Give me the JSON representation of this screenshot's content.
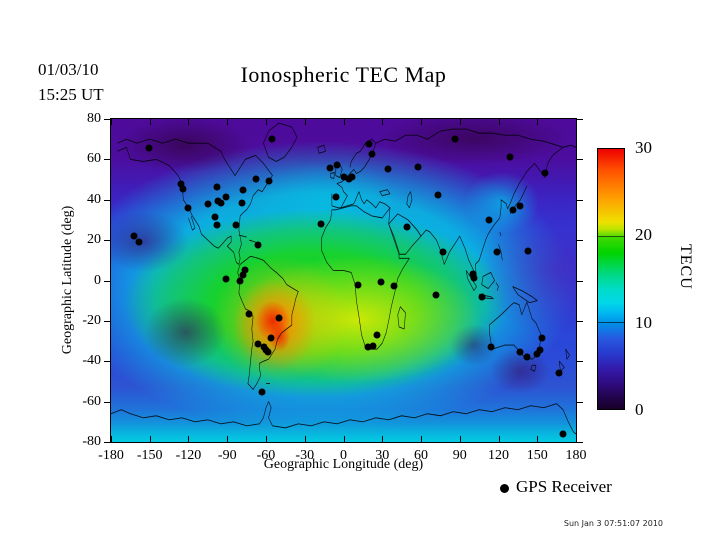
{
  "header": {
    "date": "01/03/10",
    "time": "15:25 UT",
    "title": "Ionospheric TEC Map"
  },
  "chart_data": {
    "type": "heatmap",
    "title": "Ionospheric TEC Map",
    "xlabel": "Geographic Longitude (deg)",
    "ylabel": "Geographic Latitude (deg)",
    "xlim": [
      -180,
      180
    ],
    "ylim": [
      -80,
      80
    ],
    "x_ticks": [
      -180,
      -150,
      -120,
      -90,
      -60,
      -30,
      0,
      30,
      60,
      90,
      120,
      150,
      180
    ],
    "y_ticks": [
      80,
      60,
      40,
      20,
      0,
      -20,
      -40,
      -60,
      -80
    ],
    "grid": false,
    "colorbar": {
      "unit_label": "TECU",
      "min": 0,
      "max": 30,
      "ticks": [
        30,
        20,
        10,
        0
      ],
      "colors_top_to_bottom": [
        "#ee0000",
        "#ff9800",
        "#f0e000",
        "#30d000",
        "#00d8c0",
        "#00e0e8",
        "#0090e8",
        "#2838cc",
        "#3c0d86",
        "#180028"
      ]
    },
    "tec_field_summary": {
      "peak": {
        "lon": -53,
        "lat": -22,
        "value_tecu": 30,
        "note": "red hotspot over southern Brazil"
      },
      "high_band": {
        "value_tecu": "18-26",
        "note": "green-yellow daytime band over South America, Atlantic and Africa, lat 25 to -50"
      },
      "mid": {
        "value_tecu": "8-14",
        "note": "blue over North America, Europe, Asia, Australia and oceans"
      },
      "low": {
        "value_tecu": "0-5",
        "note": "dark purple at high northern latitudes, Siberia, NE Pacific and patches near Australia"
      },
      "antarctic_edge": {
        "value_tecu": "12-15",
        "note": "cyan band along bottom edge near lat -75"
      }
    },
    "legend": {
      "marker": "black-dot",
      "label": "GPS Receiver"
    },
    "gps_receivers": [
      [
        -150.7,
        65.7
      ],
      [
        -126,
        48
      ],
      [
        -124.5,
        45.5
      ],
      [
        -120.6,
        35.7
      ],
      [
        -105,
        38
      ],
      [
        -98,
        46.5
      ],
      [
        -97.4,
        39.6
      ],
      [
        -95,
        38.6
      ],
      [
        -91,
        41.6
      ],
      [
        -78,
        45
      ],
      [
        -68,
        50.4
      ],
      [
        -57.5,
        49.5
      ],
      [
        -78.5,
        38.6
      ],
      [
        -99.8,
        31.3
      ],
      [
        -97.6,
        27.3
      ],
      [
        -83.6,
        27.3
      ],
      [
        -65.9,
        17.5
      ],
      [
        -76,
        5.2
      ],
      [
        -162,
        22
      ],
      [
        -158.4,
        19
      ],
      [
        -55.5,
        70
      ],
      [
        -90.6,
        0.7
      ],
      [
        -79.8,
        -0.2
      ],
      [
        -77.5,
        2.7
      ],
      [
        -72.8,
        -16.5
      ],
      [
        -49.7,
        -18.5
      ],
      [
        -55.9,
        -28.3
      ],
      [
        -65.9,
        -31.3
      ],
      [
        -61.3,
        -32.8
      ],
      [
        -59.8,
        -34.3
      ],
      [
        -58.8,
        -35.5
      ],
      [
        -62.8,
        -55.4
      ],
      [
        11.2,
        -2.2
      ],
      [
        25.8,
        -26.8
      ],
      [
        22.7,
        -32.3
      ],
      [
        18.9,
        -32.8
      ],
      [
        28.9,
        -0.7
      ],
      [
        38.9,
        -2.7
      ],
      [
        71.3,
        -7.1
      ],
      [
        -17.3,
        27.8
      ],
      [
        -5.8,
        41.6
      ],
      [
        -5,
        57.3
      ],
      [
        -10.4,
        55.8
      ],
      [
        0.4,
        51.4
      ],
      [
        4.2,
        50.4
      ],
      [
        6.6,
        51.4
      ],
      [
        19.7,
        67.7
      ],
      [
        22,
        62.8
      ],
      [
        34.3,
        55.4
      ],
      [
        57.4,
        56.3
      ],
      [
        86.7,
        70.2
      ],
      [
        129.2,
        61.3
      ],
      [
        156,
        53.4
      ],
      [
        72.9,
        42.6
      ],
      [
        136.9,
        36.7
      ],
      [
        131.5,
        34.7
      ],
      [
        112.9,
        29.8
      ],
      [
        49,
        26.3
      ],
      [
        76.7,
        14
      ],
      [
        119.2,
        14
      ],
      [
        143,
        14.5
      ],
      [
        101.4,
        1.2
      ],
      [
        99.9,
        3.2
      ],
      [
        107.6,
        -8.1
      ],
      [
        114.5,
        -32.8
      ],
      [
        136.9,
        -35.3
      ],
      [
        142,
        -37.8
      ],
      [
        149.8,
        -36.3
      ],
      [
        152,
        -34.5
      ],
      [
        153.9,
        -28.4
      ],
      [
        166.9,
        -45.7
      ],
      [
        170,
        -76
      ]
    ]
  },
  "footer": {
    "timestamp": "Sun Jan  3 07:51:07 2010"
  }
}
